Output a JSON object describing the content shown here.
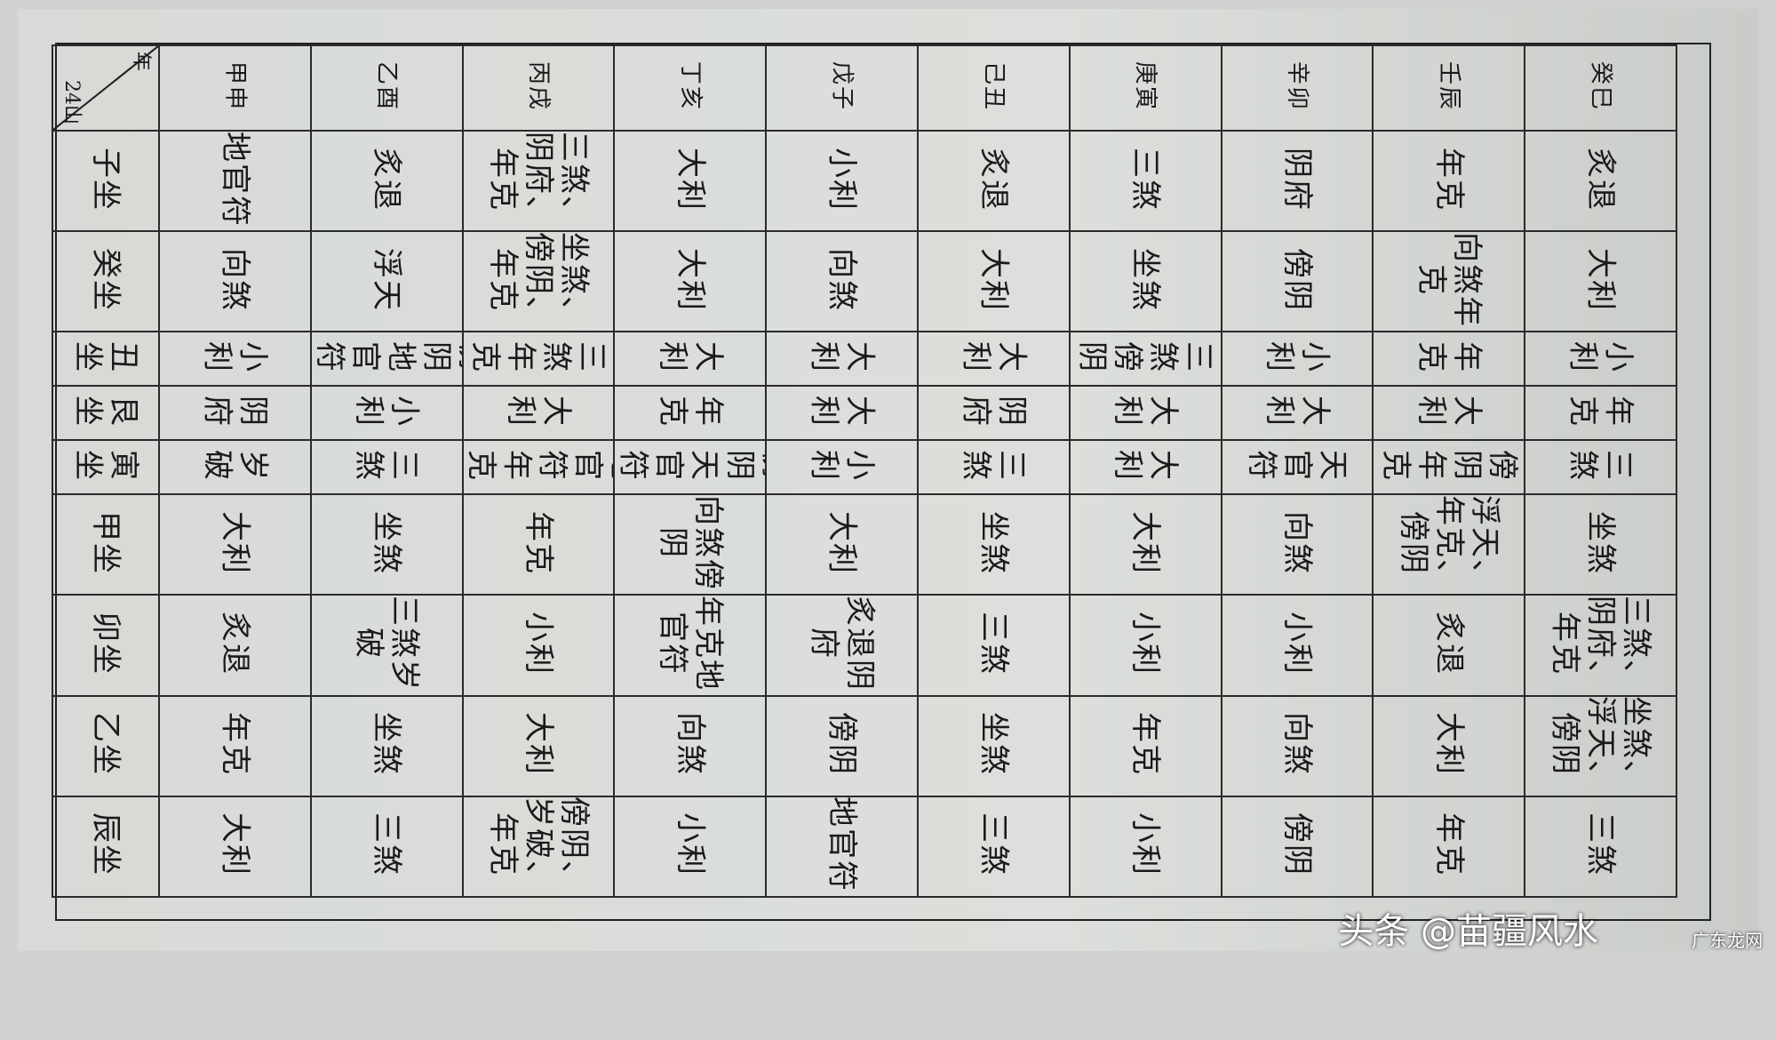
{
  "corner": {
    "mountain_label": "24山",
    "year_label": "年"
  },
  "years": [
    "甲申",
    "乙酉",
    "丙戌",
    "丁亥",
    "戊子",
    "己丑",
    "庚寅",
    "辛卯",
    "壬辰",
    "癸巳"
  ],
  "rows": [
    {
      "label": "子坐",
      "cells": [
        "地官符",
        "炙退",
        "三煞、阴府、年克",
        "大利",
        "小利",
        "炙退",
        "三煞",
        "阴府",
        "年克",
        "炙退"
      ]
    },
    {
      "label": "癸坐",
      "cells": [
        "向煞",
        "浮天",
        "坐煞、傍阴、年克",
        "大利",
        "向煞",
        "大利",
        "坐煞",
        "傍阴",
        "向煞年克",
        "大利"
      ]
    },
    {
      "label": "丑坐",
      "cells": [
        "小利",
        "傍阴地官符",
        "三煞年克",
        "大利",
        "大利",
        "大利",
        "三煞傍阴",
        "小利",
        "年克",
        "小利"
      ]
    },
    {
      "label": "艮坐",
      "cells": [
        "阴府",
        "小利",
        "大利",
        "年克",
        "大利",
        "阴府",
        "大利",
        "大利",
        "大利",
        "年克"
      ]
    },
    {
      "label": "寅坐",
      "cells": [
        "岁破",
        "三煞",
        "地官符年克",
        "傍阴天官符",
        "小利",
        "三煞",
        "大利",
        "天官符",
        "傍阴年克",
        "三煞"
      ]
    },
    {
      "label": "甲坐",
      "cells": [
        "大利",
        "坐煞",
        "年克",
        "向煞傍阴",
        "大利",
        "坐煞",
        "大利",
        "向煞",
        "浮天、年克、傍阴",
        "坐煞"
      ]
    },
    {
      "label": "卯坐",
      "cells": [
        "炙退",
        "三煞岁破",
        "小利",
        "年克地官符",
        "炙退阴府",
        "三煞",
        "小利",
        "小利",
        "炙退",
        "三煞、阴府、年克"
      ]
    },
    {
      "label": "乙坐",
      "cells": [
        "年克",
        "坐煞",
        "大利",
        "向煞",
        "傍阴",
        "坐煞",
        "年克",
        "向煞",
        "大利",
        "坐煞、浮天、傍阴"
      ]
    },
    {
      "label": "辰坐",
      "cells": [
        "大利",
        "三煞",
        "傍阴、岁破、年克",
        "小利",
        "地官符",
        "三煞",
        "小利",
        "傍阴",
        "年克",
        "三煞"
      ]
    }
  ],
  "watermark": {
    "main": "头条 @苗疆风水",
    "corner": "广东龙网"
  }
}
